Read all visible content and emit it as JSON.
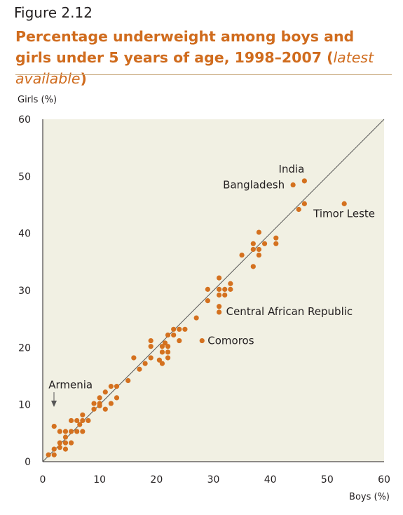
{
  "figure_label": "Figure 2.12",
  "title_main": "Percentage underweight among boys and girls under 5 years of age, 1998–2007 (",
  "title_italic": "latest available",
  "title_close": ")",
  "chart_data": {
    "type": "scatter",
    "xlabel": "Boys (%)",
    "ylabel": "Girls (%)",
    "xlim": [
      0,
      60
    ],
    "ylim": [
      0,
      60
    ],
    "xticks": [
      "0",
      "10",
      "20",
      "30",
      "40",
      "50",
      "60"
    ],
    "yticks": [
      "0",
      "10",
      "20",
      "30",
      "40",
      "50",
      "60"
    ],
    "reference_line": "y = x",
    "point_color": "#d4711f",
    "background_color": "#f1f0e3",
    "points": [
      [
        1,
        1.2
      ],
      [
        2,
        1.2
      ],
      [
        2,
        2.2
      ],
      [
        2,
        6.2
      ],
      [
        3,
        2.5
      ],
      [
        3,
        3.3
      ],
      [
        3,
        5.3
      ],
      [
        4,
        2.2
      ],
      [
        4,
        3.3
      ],
      [
        4,
        4.3
      ],
      [
        4,
        5.3
      ],
      [
        5,
        3.3
      ],
      [
        5,
        5.3
      ],
      [
        5,
        7.2
      ],
      [
        6,
        5.3
      ],
      [
        6,
        7.2
      ],
      [
        6.5,
        6.5
      ],
      [
        7,
        5.3
      ],
      [
        7,
        7.2
      ],
      [
        7,
        8.2
      ],
      [
        8,
        7.2
      ],
      [
        9,
        9.2
      ],
      [
        9,
        10.2
      ],
      [
        10,
        9.8
      ],
      [
        10,
        10.2
      ],
      [
        10,
        11.2
      ],
      [
        11,
        9.2
      ],
      [
        11,
        12.2
      ],
      [
        12,
        10.2
      ],
      [
        12,
        13.2
      ],
      [
        13,
        11.2
      ],
      [
        13,
        13.2
      ],
      [
        15,
        14.2
      ],
      [
        16,
        18.2
      ],
      [
        17,
        16.2
      ],
      [
        18,
        17.2
      ],
      [
        19,
        18.2
      ],
      [
        19,
        20.2
      ],
      [
        19,
        21.2
      ],
      [
        20.5,
        17.8
      ],
      [
        21,
        17.2
      ],
      [
        21,
        19.2
      ],
      [
        21,
        20.2
      ],
      [
        21.5,
        20.8
      ],
      [
        22,
        18.2
      ],
      [
        22,
        19.2
      ],
      [
        22,
        20.2
      ],
      [
        22,
        22.2
      ],
      [
        23,
        22.2
      ],
      [
        23,
        23.2
      ],
      [
        24,
        21.2
      ],
      [
        24,
        23.2
      ],
      [
        25,
        23.2
      ],
      [
        27,
        25.2
      ],
      [
        28,
        21.2
      ],
      [
        29,
        28.2
      ],
      [
        29,
        30.2
      ],
      [
        31,
        26.2
      ],
      [
        31,
        27.2
      ],
      [
        31,
        29.2
      ],
      [
        31,
        30.2
      ],
      [
        31,
        32.2
      ],
      [
        32,
        29.2
      ],
      [
        32,
        30.2
      ],
      [
        33,
        30.2
      ],
      [
        33,
        31.2
      ],
      [
        35,
        36.2
      ],
      [
        37,
        34.2
      ],
      [
        37,
        37.2
      ],
      [
        37,
        38.2
      ],
      [
        38,
        36.2
      ],
      [
        38,
        37.2
      ],
      [
        38,
        40.2
      ],
      [
        39,
        38.2
      ],
      [
        41,
        38.2
      ],
      [
        41,
        39.2
      ],
      [
        44,
        48.5
      ],
      [
        45,
        44.2
      ],
      [
        46,
        45.2
      ],
      [
        46,
        49.2
      ],
      [
        53,
        45.2
      ]
    ],
    "annotations": [
      {
        "text": "India",
        "x": 46,
        "y": 49.2
      },
      {
        "text": "Bangladesh",
        "x": 44,
        "y": 48.5
      },
      {
        "text": "Timor Leste",
        "x": 53,
        "y": 45.2
      },
      {
        "text": "Central African Republic",
        "x": 31,
        "y": 26.2
      },
      {
        "text": "Comoros",
        "x": 28,
        "y": 21.2
      },
      {
        "text": "Armenia",
        "x": 2,
        "y": 6.2
      }
    ]
  }
}
